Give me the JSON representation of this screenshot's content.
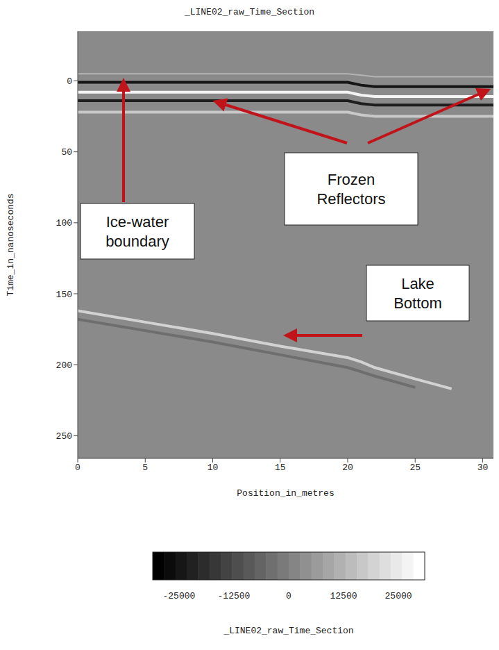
{
  "chart_data": {
    "type": "line",
    "title": "_LINE02_raw_Time_Section",
    "x_label": "Position_in_metres",
    "y_label": "Time_in_nanoseconds",
    "x": [
      0,
      5,
      10,
      15,
      20,
      21,
      22,
      25,
      27.7,
      30.8
    ],
    "series": [
      {
        "color": "#b4b4b4",
        "values": [
          -5,
          -5,
          -5,
          -5,
          -5,
          -4,
          -3,
          -3,
          -3,
          -3
        ]
      },
      {
        "color": "#151515",
        "values": [
          1,
          1,
          1,
          1,
          1,
          3,
          4,
          4,
          4,
          4
        ]
      },
      {
        "color": "#f4f4f4",
        "values": [
          8,
          8,
          8,
          8,
          8,
          10,
          11,
          11,
          11,
          11
        ]
      },
      {
        "color": "#1e1e1e",
        "values": [
          14,
          14,
          14,
          14,
          14,
          16,
          17,
          17,
          17,
          17
        ]
      },
      {
        "color": "#c8c8c8",
        "values": [
          22,
          22,
          22,
          22,
          22,
          24,
          25,
          25,
          25,
          25
        ]
      },
      {
        "color": "#d2d2d2",
        "values": [
          162,
          170,
          178,
          187,
          195,
          198,
          202,
          210,
          217,
          null
        ]
      },
      {
        "color": "#6e6e6e",
        "values": [
          168,
          176,
          184,
          193,
          202,
          205,
          208,
          216,
          null,
          null
        ]
      }
    ],
    "xlim": [
      0,
      30.8
    ],
    "xticks": [
      0,
      5,
      10,
      15,
      20,
      25,
      30
    ],
    "ylim": [
      266,
      -35
    ],
    "yticks": [
      0,
      50,
      100,
      150,
      200,
      250
    ],
    "grid": false,
    "background": "#8a8a8a",
    "annotations": [
      "Ice-water boundary",
      "Frozen Reflectors",
      "Lake Bottom"
    ],
    "colorbar": {
      "label": "_LINE02_raw_Time_Section",
      "range": [
        -31000,
        31000
      ],
      "ticks": [
        -25000,
        -12500,
        0,
        12500,
        25000
      ]
    }
  }
}
